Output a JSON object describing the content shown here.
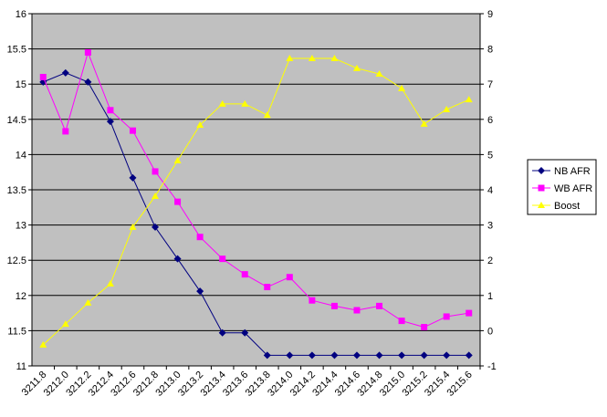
{
  "chart_data": {
    "type": "line",
    "title": "",
    "xlabel": "",
    "ylabel": "",
    "categories": [
      "3211.8",
      "3212.0",
      "3212.2",
      "3212.4",
      "3212.6",
      "3212.8",
      "3213.0",
      "3213.2",
      "3213.4",
      "3213.6",
      "3213.8",
      "3214.0",
      "3214.2",
      "3214.4",
      "3214.6",
      "3214.8",
      "3215.0",
      "3215.2",
      "3215.4",
      "3215.6"
    ],
    "ylim": [
      11,
      16
    ],
    "y_ticks": [
      11,
      11.5,
      12,
      12.5,
      13,
      13.5,
      14,
      14.5,
      15,
      15.5,
      16
    ],
    "y2lim": [
      -1,
      9
    ],
    "y2_ticks": [
      -1,
      0,
      1,
      2,
      3,
      4,
      5,
      6,
      7,
      8,
      9
    ],
    "grid": true,
    "legend_position": "right",
    "plot_background": "#c0c0c0",
    "series": [
      {
        "name": "NB AFR",
        "axis": "left",
        "color": "#000080",
        "marker": "diamond",
        "values": [
          15.03,
          15.16,
          15.03,
          14.47,
          13.67,
          12.97,
          12.52,
          12.06,
          11.47,
          11.47,
          11.15,
          11.15,
          11.15,
          11.15,
          11.15,
          11.15,
          11.15,
          11.15,
          11.15,
          11.15
        ]
      },
      {
        "name": "WB AFR",
        "axis": "left",
        "color": "#ff00ff",
        "marker": "square",
        "values": [
          15.1,
          14.33,
          15.45,
          14.63,
          14.34,
          13.76,
          13.33,
          12.83,
          12.52,
          12.3,
          12.12,
          12.26,
          11.93,
          11.85,
          11.79,
          11.85,
          11.64,
          11.55,
          11.7,
          11.75
        ]
      },
      {
        "name": "Boost",
        "axis": "right",
        "color": "#ffff00",
        "marker": "triangle",
        "values": [
          -0.4,
          0.19,
          0.79,
          1.33,
          2.94,
          3.82,
          4.83,
          5.84,
          6.44,
          6.44,
          6.12,
          7.73,
          7.73,
          7.73,
          7.45,
          7.29,
          6.88,
          5.87,
          6.28,
          6.56
        ]
      }
    ]
  }
}
